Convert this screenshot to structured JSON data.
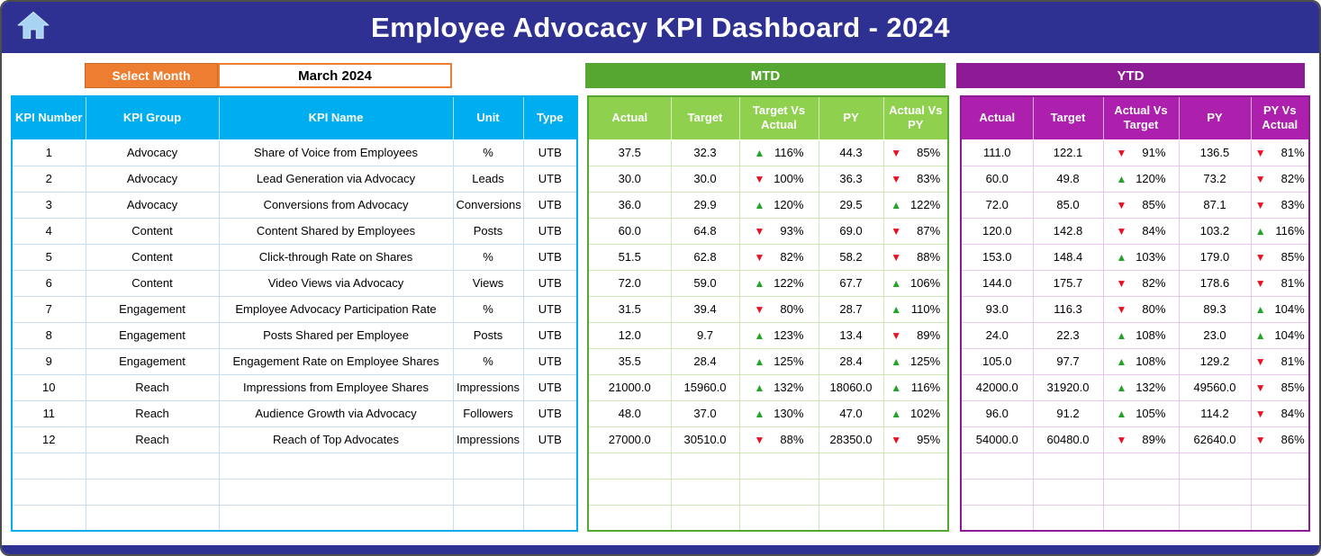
{
  "window": {
    "title": "Employee Advocacy KPI Dashboard - 2024"
  },
  "controls": {
    "select_month_label": "Select Month",
    "selected_month": "March 2024"
  },
  "sections": {
    "mtd": "MTD",
    "ytd": "YTD"
  },
  "table": {
    "info_headers": [
      "KPI Number",
      "KPI Group",
      "KPI Name",
      "Unit",
      "Type"
    ],
    "mtd_headers": [
      "Actual",
      "Target",
      "Target Vs Actual",
      "PY",
      "Actual Vs PY"
    ],
    "ytd_headers": [
      "Actual",
      "Target",
      "Actual Vs Target",
      "PY",
      "PY Vs Actual"
    ],
    "empty_rows": 3,
    "rows": [
      {
        "kpi_number": "1",
        "kpi_group": "Advocacy",
        "kpi_name": "Share of Voice from Employees",
        "unit": "%",
        "type": "UTB",
        "mtd": {
          "actual": "37.5",
          "target": "32.3",
          "target_vs_actual": {
            "dir": "up",
            "value": "116%"
          },
          "py": "44.3",
          "actual_vs_py": {
            "dir": "down",
            "value": "85%"
          }
        },
        "ytd": {
          "actual": "111.0",
          "target": "122.1",
          "actual_vs_target": {
            "dir": "down",
            "value": "91%"
          },
          "py": "136.5",
          "py_vs_actual": {
            "dir": "down",
            "value": "81%"
          }
        }
      },
      {
        "kpi_number": "2",
        "kpi_group": "Advocacy",
        "kpi_name": "Lead Generation via Advocacy",
        "unit": "Leads",
        "type": "UTB",
        "mtd": {
          "actual": "30.0",
          "target": "30.0",
          "target_vs_actual": {
            "dir": "down",
            "value": "100%"
          },
          "py": "36.3",
          "actual_vs_py": {
            "dir": "down",
            "value": "83%"
          }
        },
        "ytd": {
          "actual": "60.0",
          "target": "49.8",
          "actual_vs_target": {
            "dir": "up",
            "value": "120%"
          },
          "py": "73.2",
          "py_vs_actual": {
            "dir": "down",
            "value": "82%"
          }
        }
      },
      {
        "kpi_number": "3",
        "kpi_group": "Advocacy",
        "kpi_name": "Conversions from Advocacy",
        "unit": "Conversions",
        "type": "UTB",
        "mtd": {
          "actual": "36.0",
          "target": "29.9",
          "target_vs_actual": {
            "dir": "up",
            "value": "120%"
          },
          "py": "29.5",
          "actual_vs_py": {
            "dir": "up",
            "value": "122%"
          }
        },
        "ytd": {
          "actual": "72.0",
          "target": "85.0",
          "actual_vs_target": {
            "dir": "down",
            "value": "85%"
          },
          "py": "87.1",
          "py_vs_actual": {
            "dir": "down",
            "value": "83%"
          }
        }
      },
      {
        "kpi_number": "4",
        "kpi_group": "Content",
        "kpi_name": "Content Shared by Employees",
        "unit": "Posts",
        "type": "UTB",
        "mtd": {
          "actual": "60.0",
          "target": "64.8",
          "target_vs_actual": {
            "dir": "down",
            "value": "93%"
          },
          "py": "69.0",
          "actual_vs_py": {
            "dir": "down",
            "value": "87%"
          }
        },
        "ytd": {
          "actual": "120.0",
          "target": "142.8",
          "actual_vs_target": {
            "dir": "down",
            "value": "84%"
          },
          "py": "103.2",
          "py_vs_actual": {
            "dir": "up",
            "value": "116%"
          }
        }
      },
      {
        "kpi_number": "5",
        "kpi_group": "Content",
        "kpi_name": "Click-through Rate on Shares",
        "unit": "%",
        "type": "UTB",
        "mtd": {
          "actual": "51.5",
          "target": "62.8",
          "target_vs_actual": {
            "dir": "down",
            "value": "82%"
          },
          "py": "58.2",
          "actual_vs_py": {
            "dir": "down",
            "value": "88%"
          }
        },
        "ytd": {
          "actual": "153.0",
          "target": "148.4",
          "actual_vs_target": {
            "dir": "up",
            "value": "103%"
          },
          "py": "179.0",
          "py_vs_actual": {
            "dir": "down",
            "value": "85%"
          }
        }
      },
      {
        "kpi_number": "6",
        "kpi_group": "Content",
        "kpi_name": "Video Views via Advocacy",
        "unit": "Views",
        "type": "UTB",
        "mtd": {
          "actual": "72.0",
          "target": "59.0",
          "target_vs_actual": {
            "dir": "up",
            "value": "122%"
          },
          "py": "67.7",
          "actual_vs_py": {
            "dir": "up",
            "value": "106%"
          }
        },
        "ytd": {
          "actual": "144.0",
          "target": "175.7",
          "actual_vs_target": {
            "dir": "down",
            "value": "82%"
          },
          "py": "178.6",
          "py_vs_actual": {
            "dir": "down",
            "value": "81%"
          }
        }
      },
      {
        "kpi_number": "7",
        "kpi_group": "Engagement",
        "kpi_name": "Employee Advocacy Participation Rate",
        "unit": "%",
        "type": "UTB",
        "mtd": {
          "actual": "31.5",
          "target": "39.4",
          "target_vs_actual": {
            "dir": "down",
            "value": "80%"
          },
          "py": "28.7",
          "actual_vs_py": {
            "dir": "up",
            "value": "110%"
          }
        },
        "ytd": {
          "actual": "93.0",
          "target": "116.3",
          "actual_vs_target": {
            "dir": "down",
            "value": "80%"
          },
          "py": "89.3",
          "py_vs_actual": {
            "dir": "up",
            "value": "104%"
          }
        }
      },
      {
        "kpi_number": "8",
        "kpi_group": "Engagement",
        "kpi_name": "Posts Shared per Employee",
        "unit": "Posts",
        "type": "UTB",
        "mtd": {
          "actual": "12.0",
          "target": "9.7",
          "target_vs_actual": {
            "dir": "up",
            "value": "123%"
          },
          "py": "13.4",
          "actual_vs_py": {
            "dir": "down",
            "value": "89%"
          }
        },
        "ytd": {
          "actual": "24.0",
          "target": "22.3",
          "actual_vs_target": {
            "dir": "up",
            "value": "108%"
          },
          "py": "23.0",
          "py_vs_actual": {
            "dir": "up",
            "value": "104%"
          }
        }
      },
      {
        "kpi_number": "9",
        "kpi_group": "Engagement",
        "kpi_name": "Engagement Rate on Employee Shares",
        "unit": "%",
        "type": "UTB",
        "mtd": {
          "actual": "35.5",
          "target": "28.4",
          "target_vs_actual": {
            "dir": "up",
            "value": "125%"
          },
          "py": "28.4",
          "actual_vs_py": {
            "dir": "up",
            "value": "125%"
          }
        },
        "ytd": {
          "actual": "105.0",
          "target": "97.7",
          "actual_vs_target": {
            "dir": "up",
            "value": "108%"
          },
          "py": "129.2",
          "py_vs_actual": {
            "dir": "down",
            "value": "81%"
          }
        }
      },
      {
        "kpi_number": "10",
        "kpi_group": "Reach",
        "kpi_name": "Impressions from Employee Shares",
        "unit": "Impressions",
        "type": "UTB",
        "mtd": {
          "actual": "21000.0",
          "target": "15960.0",
          "target_vs_actual": {
            "dir": "up",
            "value": "132%"
          },
          "py": "18060.0",
          "actual_vs_py": {
            "dir": "up",
            "value": "116%"
          }
        },
        "ytd": {
          "actual": "42000.0",
          "target": "31920.0",
          "actual_vs_target": {
            "dir": "up",
            "value": "132%"
          },
          "py": "49560.0",
          "py_vs_actual": {
            "dir": "down",
            "value": "85%"
          }
        }
      },
      {
        "kpi_number": "11",
        "kpi_group": "Reach",
        "kpi_name": "Audience Growth via Advocacy",
        "unit": "Followers",
        "type": "UTB",
        "mtd": {
          "actual": "48.0",
          "target": "37.0",
          "target_vs_actual": {
            "dir": "up",
            "value": "130%"
          },
          "py": "47.0",
          "actual_vs_py": {
            "dir": "up",
            "value": "102%"
          }
        },
        "ytd": {
          "actual": "96.0",
          "target": "91.2",
          "actual_vs_target": {
            "dir": "up",
            "value": "105%"
          },
          "py": "114.2",
          "py_vs_actual": {
            "dir": "down",
            "value": "84%"
          }
        }
      },
      {
        "kpi_number": "12",
        "kpi_group": "Reach",
        "kpi_name": "Reach of Top Advocates",
        "unit": "Impressions",
        "type": "UTB",
        "mtd": {
          "actual": "27000.0",
          "target": "30510.0",
          "target_vs_actual": {
            "dir": "down",
            "value": "88%"
          },
          "py": "28350.0",
          "actual_vs_py": {
            "dir": "down",
            "value": "95%"
          }
        },
        "ytd": {
          "actual": "54000.0",
          "target": "60480.0",
          "actual_vs_target": {
            "dir": "down",
            "value": "89%"
          },
          "py": "62640.0",
          "py_vs_actual": {
            "dir": "down",
            "value": "86%"
          }
        }
      }
    ]
  },
  "colors": {
    "banner_blue": "#2E3192",
    "accent_orange": "#ED7D31",
    "kpi_header_blue": "#00AEEF",
    "mtd_green": "#56A632",
    "mtd_header_green": "#8FD14F",
    "ytd_purple": "#8E1B96",
    "ytd_header_purple": "#AD1FAD",
    "up_green": "#23A428",
    "down_red": "#E81123"
  }
}
